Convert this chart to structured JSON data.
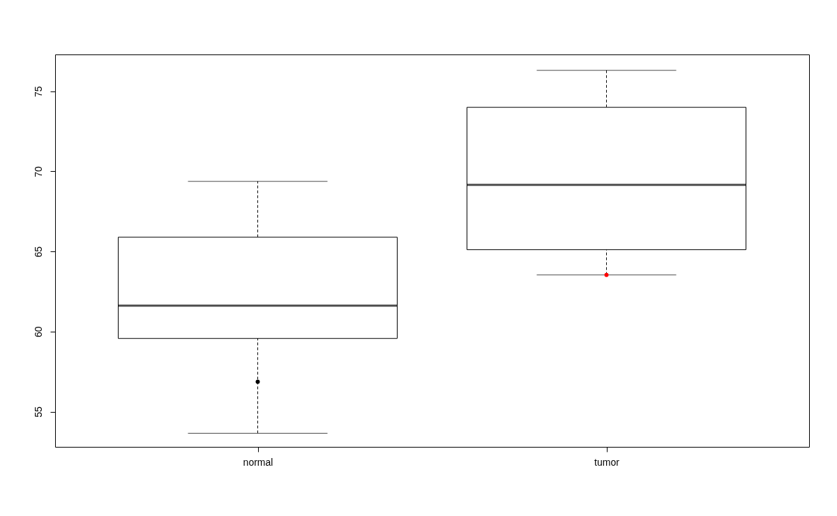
{
  "chart_data": {
    "type": "box",
    "categories": [
      "normal",
      "tumor"
    ],
    "boxes": [
      {
        "low": 53.65,
        "q1": 59.57,
        "median": 61.62,
        "q3": 65.89,
        "high": 69.38
      },
      {
        "low": 63.54,
        "q1": 65.11,
        "median": 69.16,
        "q3": 74.0,
        "high": 76.31
      }
    ],
    "series": [
      {
        "type": "scatter",
        "x": [
          "normal"
        ],
        "values": [
          56.87
        ],
        "color": "#000000"
      },
      {
        "type": "scatter",
        "x": [
          "tumor"
        ],
        "values": [
          63.54
        ],
        "color": "#ff0000"
      }
    ],
    "ylim": [
      52.8,
      77.3
    ],
    "yticks": [
      55,
      60,
      65,
      70,
      75
    ],
    "line_style": "dashed"
  }
}
